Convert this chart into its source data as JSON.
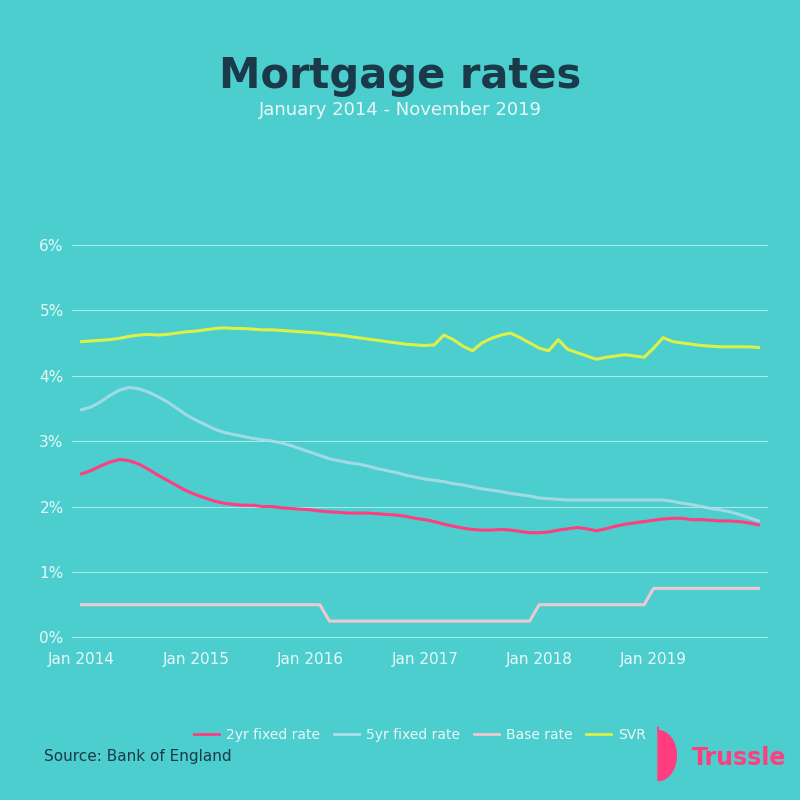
{
  "title": "Mortgage rates",
  "subtitle": "January 2014 - November 2019",
  "source": "Source: Bank of England",
  "background_color": "#4DCECE",
  "title_color": "#1a3a4a",
  "subtitle_color": "#e8f8f8",
  "axis_label_color": "#e8f8f8",
  "grid_color": "#ffffff",
  "ytick_values": [
    0,
    1,
    2,
    3,
    4,
    5,
    6
  ],
  "xtick_labels": [
    "Jan 2014",
    "Jan 2015",
    "Jan 2016",
    "Jan 2017",
    "Jan 2018",
    "Jan 2019"
  ],
  "xtick_positions": [
    0,
    12,
    24,
    36,
    48,
    60
  ],
  "xlim": [
    -1,
    72
  ],
  "ylim": [
    -0.1,
    6.5
  ],
  "line_colors": {
    "2yr": "#ff3d7f",
    "5yr": "#b0dde8",
    "base": "#f0c8d4",
    "svr": "#ddf04a"
  },
  "line_widths": {
    "2yr": 2.2,
    "5yr": 2.2,
    "base": 2.2,
    "svr": 2.2
  },
  "legend_labels": [
    "2yr fixed rate",
    "5yr fixed rate",
    "Base rate",
    "SVR"
  ],
  "trussle_color": "#ff3d7f",
  "svr": [
    4.52,
    4.53,
    4.54,
    4.55,
    4.57,
    4.6,
    4.62,
    4.63,
    4.62,
    4.63,
    4.65,
    4.67,
    4.68,
    4.7,
    4.72,
    4.73,
    4.72,
    4.72,
    4.71,
    4.7,
    4.7,
    4.69,
    4.68,
    4.67,
    4.66,
    4.65,
    4.63,
    4.62,
    4.6,
    4.58,
    4.56,
    4.54,
    4.52,
    4.5,
    4.48,
    4.47,
    4.46,
    4.47,
    4.62,
    4.55,
    4.45,
    4.38,
    4.5,
    4.57,
    4.62,
    4.65,
    4.58,
    4.5,
    4.42,
    4.38,
    4.55,
    4.4,
    4.35,
    4.3,
    4.25,
    4.28,
    4.3,
    4.32,
    4.3,
    4.28,
    4.42,
    4.58,
    4.52,
    4.5,
    4.48,
    4.46,
    4.45,
    4.44,
    4.44,
    4.44,
    4.44,
    4.43
  ],
  "five_yr": [
    3.48,
    3.52,
    3.6,
    3.7,
    3.78,
    3.82,
    3.8,
    3.75,
    3.68,
    3.6,
    3.5,
    3.4,
    3.32,
    3.25,
    3.18,
    3.13,
    3.1,
    3.07,
    3.04,
    3.02,
    3.0,
    2.97,
    2.93,
    2.88,
    2.83,
    2.78,
    2.73,
    2.7,
    2.67,
    2.65,
    2.62,
    2.58,
    2.55,
    2.52,
    2.48,
    2.45,
    2.42,
    2.4,
    2.38,
    2.35,
    2.33,
    2.3,
    2.27,
    2.25,
    2.23,
    2.2,
    2.18,
    2.16,
    2.13,
    2.12,
    2.11,
    2.1,
    2.1,
    2.1,
    2.1,
    2.1,
    2.1,
    2.1,
    2.1,
    2.1,
    2.1,
    2.1,
    2.08,
    2.05,
    2.03,
    2.0,
    1.97,
    1.95,
    1.92,
    1.88,
    1.83,
    1.78
  ],
  "two_yr": [
    2.5,
    2.55,
    2.62,
    2.68,
    2.72,
    2.7,
    2.65,
    2.57,
    2.48,
    2.4,
    2.32,
    2.24,
    2.18,
    2.13,
    2.08,
    2.05,
    2.03,
    2.02,
    2.02,
    2.0,
    2.0,
    1.98,
    1.97,
    1.96,
    1.95,
    1.93,
    1.92,
    1.91,
    1.9,
    1.9,
    1.9,
    1.89,
    1.88,
    1.87,
    1.85,
    1.82,
    1.8,
    1.77,
    1.73,
    1.7,
    1.67,
    1.65,
    1.64,
    1.64,
    1.65,
    1.64,
    1.62,
    1.6,
    1.6,
    1.61,
    1.64,
    1.66,
    1.68,
    1.66,
    1.63,
    1.66,
    1.7,
    1.73,
    1.75,
    1.77,
    1.79,
    1.81,
    1.82,
    1.82,
    1.8,
    1.8,
    1.79,
    1.78,
    1.78,
    1.77,
    1.75,
    1.72
  ],
  "base_rate": [
    0.5,
    0.5,
    0.5,
    0.5,
    0.5,
    0.5,
    0.5,
    0.5,
    0.5,
    0.5,
    0.5,
    0.5,
    0.5,
    0.5,
    0.5,
    0.5,
    0.5,
    0.5,
    0.5,
    0.5,
    0.5,
    0.5,
    0.5,
    0.5,
    0.5,
    0.5,
    0.25,
    0.25,
    0.25,
    0.25,
    0.25,
    0.25,
    0.25,
    0.25,
    0.25,
    0.25,
    0.25,
    0.25,
    0.25,
    0.25,
    0.25,
    0.25,
    0.25,
    0.25,
    0.25,
    0.25,
    0.25,
    0.25,
    0.5,
    0.5,
    0.5,
    0.5,
    0.5,
    0.5,
    0.5,
    0.5,
    0.5,
    0.5,
    0.5,
    0.5,
    0.75,
    0.75,
    0.75,
    0.75,
    0.75,
    0.75,
    0.75,
    0.75,
    0.75,
    0.75,
    0.75,
    0.75
  ]
}
